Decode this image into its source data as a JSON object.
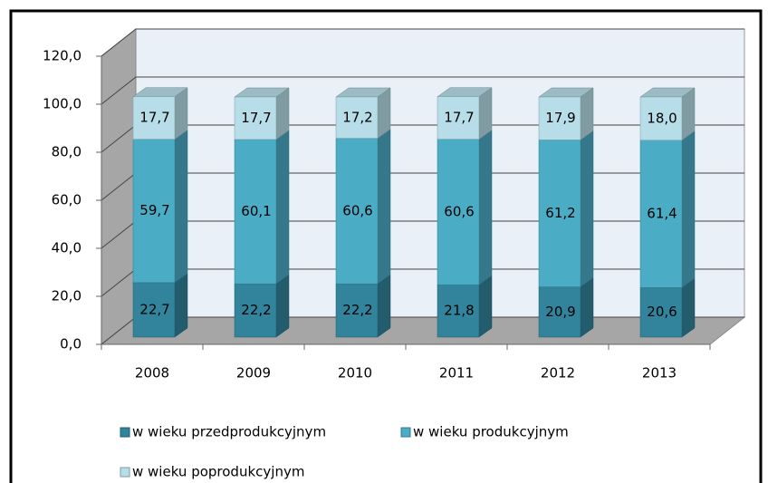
{
  "chart_data": {
    "type": "bar",
    "stacked": true,
    "categories": [
      "2008",
      "2009",
      "2010",
      "2011",
      "2012",
      "2013"
    ],
    "series": [
      {
        "name": "w wieku przedprodukcyjnym",
        "color": "#31849b",
        "values": [
          22.7,
          22.2,
          22.2,
          21.8,
          20.9,
          20.6
        ],
        "value_labels": [
          "22,7",
          "22,2",
          "22,2",
          "21,8",
          "20,9",
          "20,6"
        ]
      },
      {
        "name": "w wieku produkcyjnym",
        "color": "#4bacc6",
        "values": [
          59.7,
          60.1,
          60.6,
          60.6,
          61.2,
          61.4
        ],
        "value_labels": [
          "59,7",
          "60,1",
          "60,6",
          "60,6",
          "61,2",
          "61,4"
        ]
      },
      {
        "name": "w wieku poprodukcyjnym",
        "color": "#b7dde8",
        "values": [
          17.7,
          17.7,
          17.2,
          17.7,
          17.9,
          18.0
        ],
        "value_labels": [
          "17,7",
          "17,7",
          "17,2",
          "17,7",
          "17,9",
          "18,0"
        ]
      }
    ],
    "ylim": [
      0,
      120
    ],
    "yticks": [
      {
        "value": 0,
        "label": "0,0"
      },
      {
        "value": 20,
        "label": "20,0"
      },
      {
        "value": 40,
        "label": "40,0"
      },
      {
        "value": 60,
        "label": "60,0"
      },
      {
        "value": 80,
        "label": "80,0"
      },
      {
        "value": 100,
        "label": "100,0"
      },
      {
        "value": 120,
        "label": "120,0"
      }
    ],
    "grid": true
  }
}
